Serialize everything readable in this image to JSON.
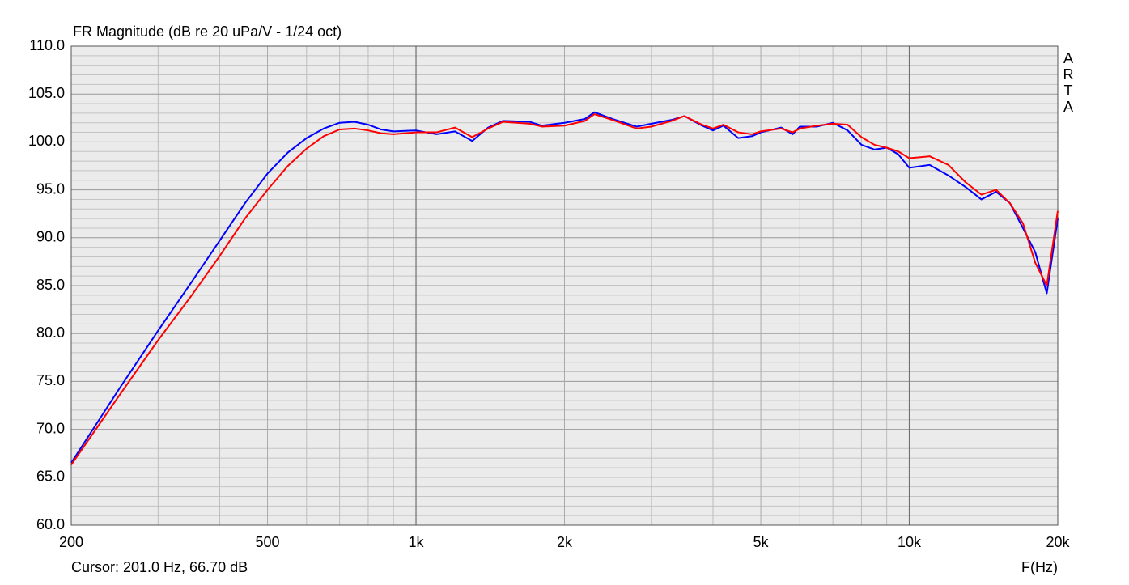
{
  "chart_data": {
    "type": "line",
    "title": "FR Magnitude (dB re 20 uPa/V - 1/24 oct)",
    "watermark": "ARTA",
    "cursor_text": "Cursor: 201.0 Hz, 66.70 dB",
    "x_label": "F(Hz)",
    "x_scale": "log",
    "grid": true,
    "xlim": [
      200,
      20000
    ],
    "ylim": [
      60,
      110
    ],
    "xticks": [
      200,
      500,
      {
        "value": 1000,
        "label": "1k"
      },
      {
        "value": 2000,
        "label": "2k"
      },
      {
        "value": 5000,
        "label": "5k"
      },
      {
        "value": 10000,
        "label": "10k"
      },
      {
        "value": 20000,
        "label": "20k"
      }
    ],
    "xminor": [
      300,
      400,
      600,
      700,
      800,
      900,
      3000,
      4000,
      6000,
      7000,
      8000,
      9000
    ],
    "xmajor": [
      1000,
      10000
    ],
    "yticks": [
      {
        "value": 60,
        "label": "60.0"
      },
      {
        "value": 65,
        "label": "65.0"
      },
      {
        "value": 70,
        "label": "70.0"
      },
      {
        "value": 75,
        "label": "75.0"
      },
      {
        "value": 80,
        "label": "80.0"
      },
      {
        "value": 85,
        "label": "85.0"
      },
      {
        "value": 90,
        "label": "90.0"
      },
      {
        "value": 95,
        "label": "95.0"
      },
      {
        "value": 100,
        "label": "100.0"
      },
      {
        "value": 105,
        "label": "105.0"
      },
      {
        "value": 110,
        "label": "110.0"
      }
    ],
    "x": [
      200,
      250,
      300,
      350,
      400,
      450,
      500,
      550,
      600,
      650,
      700,
      750,
      800,
      850,
      900,
      1000,
      1100,
      1200,
      1300,
      1400,
      1500,
      1700,
      1800,
      2000,
      2200,
      2300,
      2500,
      2800,
      3000,
      3300,
      3500,
      3800,
      4000,
      4200,
      4500,
      4800,
      5000,
      5500,
      5800,
      6000,
      6500,
      7000,
      7500,
      8000,
      8500,
      9000,
      9500,
      10000,
      11000,
      12000,
      13000,
      14000,
      15000,
      16000,
      17000,
      18000,
      19000,
      20000
    ],
    "series": [
      {
        "color": "#0000ff",
        "values": [
          66.5,
          74.2,
          80.3,
          85.3,
          89.7,
          93.6,
          96.7,
          98.9,
          100.4,
          101.4,
          102,
          102.1,
          101.8,
          101.3,
          101.1,
          101.2,
          100.8,
          101.1,
          100.1,
          101.5,
          102.2,
          102.1,
          101.7,
          102,
          102.4,
          103.1,
          102.4,
          101.6,
          101.9,
          102.3,
          102.7,
          101.7,
          101.2,
          101.7,
          100.4,
          100.6,
          101,
          101.5,
          100.8,
          101.6,
          101.6,
          102,
          101.2,
          99.7,
          99.2,
          99.4,
          98.7,
          97.3,
          97.6,
          96.5,
          95.3,
          94,
          94.8,
          93.6,
          91,
          88.5,
          84.2,
          92
        ]
      },
      {
        "color": "#ff0000",
        "values": [
          66.3,
          73.5,
          79.3,
          83.9,
          88.1,
          92,
          95,
          97.5,
          99.3,
          100.6,
          101.3,
          101.4,
          101.2,
          100.9,
          100.8,
          101,
          101,
          101.5,
          100.5,
          101.4,
          102.1,
          101.9,
          101.6,
          101.7,
          102.2,
          102.9,
          102.3,
          101.4,
          101.6,
          102.2,
          102.7,
          101.8,
          101.4,
          101.8,
          101,
          100.8,
          101.1,
          101.4,
          101,
          101.4,
          101.7,
          101.9,
          101.8,
          100.5,
          99.7,
          99.4,
          99,
          98.3,
          98.5,
          97.6,
          95.8,
          94.5,
          95,
          93.6,
          91.5,
          87.4,
          85,
          92.8
        ]
      }
    ]
  }
}
